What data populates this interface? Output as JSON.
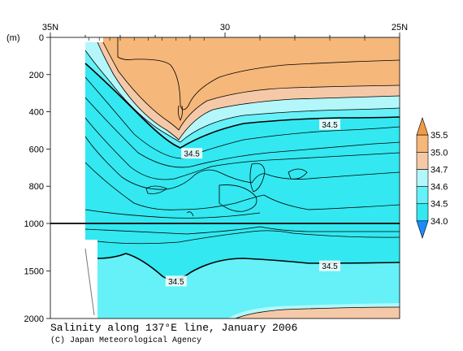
{
  "chart_data": {
    "type": "heatmap",
    "title": "Salinity along 137°E line, January 2006",
    "credit": "(C) Japan Meteorological Agency",
    "x_unit_label": "",
    "y_unit_label": "(m)",
    "x_ticks": [
      {
        "value": 35,
        "label": "35N"
      },
      {
        "value": 30,
        "label": "30"
      },
      {
        "value": 25,
        "label": "25N"
      }
    ],
    "x_minor_ticks": [
      34,
      33,
      32,
      31,
      29,
      28,
      27,
      26
    ],
    "xlim": [
      35,
      25
    ],
    "upper_panel": {
      "depth_range": [
        0,
        1000
      ],
      "y_ticks": [
        {
          "value": 0,
          "label": "0"
        },
        {
          "value": 200,
          "label": "200"
        },
        {
          "value": 400,
          "label": "400"
        },
        {
          "value": 600,
          "label": "600"
        },
        {
          "value": 800,
          "label": "800"
        },
        {
          "value": 1000,
          "label": "1000"
        }
      ]
    },
    "lower_panel": {
      "depth_range": [
        1000,
        2000
      ],
      "y_ticks": [
        {
          "value": 1500,
          "label": "1500"
        },
        {
          "value": 2000,
          "label": "2000"
        }
      ]
    },
    "colorbar": {
      "levels": [
        {
          "value": 34.0,
          "label": "34.0"
        },
        {
          "value": 34.5,
          "label": "34.5"
        },
        {
          "value": 34.6,
          "label": "34.6"
        },
        {
          "value": 34.7,
          "label": "34.7"
        },
        {
          "value": 35.0,
          "label": "35.0"
        },
        {
          "value": 35.5,
          "label": "35.5"
        }
      ],
      "colors": [
        "#1a8cff",
        "#33e8f0",
        "#66f0f8",
        "#b3f7fb",
        "#f5c9a8",
        "#f5b77a",
        "#f19a45"
      ]
    },
    "contour_labels": [
      {
        "lat": 27.0,
        "depth": 470,
        "label": "34.5"
      },
      {
        "lat": 30.95,
        "depth": 625,
        "label": "34.5"
      },
      {
        "lat": 27.0,
        "depth": 1450,
        "label": "34.5"
      },
      {
        "lat": 31.4,
        "depth": 1610,
        "label": "34.5"
      }
    ],
    "grid": false,
    "legend_position": "right"
  }
}
